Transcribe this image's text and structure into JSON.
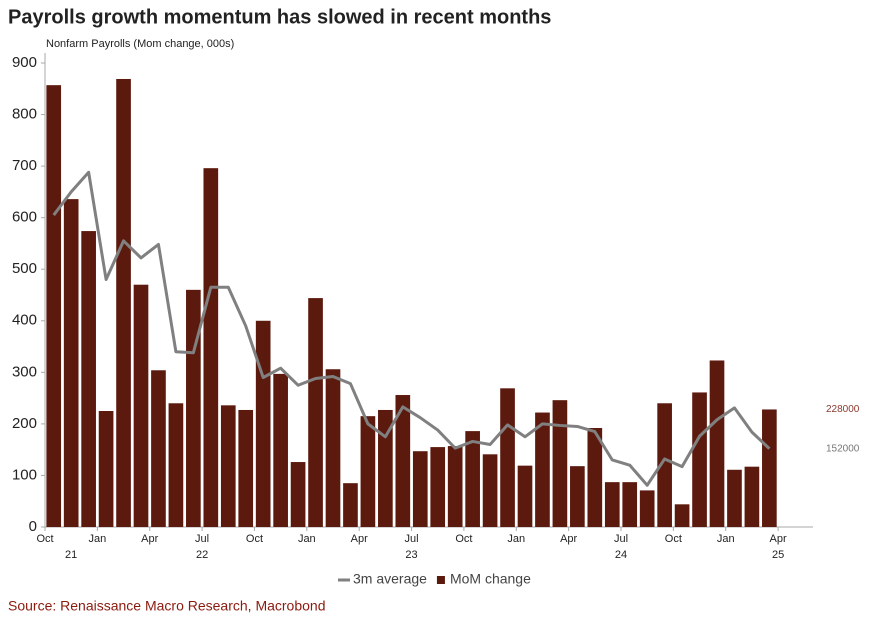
{
  "chart_data": {
    "type": "bar_line",
    "title": "Payrolls growth momentum has slowed in recent months",
    "y_label": "Nonfarm Payrolls (Mom change, 000s)",
    "source": "Source: Renaissance Macro Research, Macrobond",
    "ylim": [
      0,
      900
    ],
    "yticks": [
      0,
      100,
      200,
      300,
      400,
      500,
      600,
      700,
      800,
      900
    ],
    "xlim": [
      0,
      44
    ],
    "xticks": [
      {
        "value": 0,
        "label": "Oct"
      },
      {
        "value": 3,
        "label": "Jan"
      },
      {
        "value": 6,
        "label": "Apr"
      },
      {
        "value": 9,
        "label": "Jul"
      },
      {
        "value": 12,
        "label": "Oct"
      },
      {
        "value": 15,
        "label": "Jan"
      },
      {
        "value": 18,
        "label": "Apr"
      },
      {
        "value": 21,
        "label": "Jul"
      },
      {
        "value": 24,
        "label": "Oct"
      },
      {
        "value": 27,
        "label": "Jan"
      },
      {
        "value": 30,
        "label": "Apr"
      },
      {
        "value": 33,
        "label": "Jul"
      },
      {
        "value": 36,
        "label": "Oct"
      },
      {
        "value": 39,
        "label": "Jan"
      },
      {
        "value": 42,
        "label": "Apr"
      }
    ],
    "year_ticks": [
      {
        "value": 1.5,
        "label": "21"
      },
      {
        "value": 9,
        "label": "22"
      },
      {
        "value": 21,
        "label": "23"
      },
      {
        "value": 33,
        "label": "24"
      },
      {
        "value": 42,
        "label": "25"
      }
    ],
    "grid": false,
    "legend": "bottom",
    "series": [
      {
        "name": "3m average",
        "type": "line",
        "color": "#808080",
        "values": [
          605,
          650,
          688,
          480,
          555,
          522,
          548,
          340,
          338,
          465,
          465,
          390,
          290,
          308,
          275,
          288,
          292,
          278,
          200,
          175,
          233,
          212,
          188,
          153,
          166,
          160,
          198,
          175,
          200,
          197,
          195,
          185,
          130,
          120,
          81,
          132,
          117,
          176,
          208,
          231,
          184,
          152
        ],
        "value_labels": [
          null,
          null,
          null,
          null,
          null,
          null,
          null,
          null,
          null,
          null,
          null,
          null,
          null,
          null,
          null,
          null,
          null,
          null,
          null,
          null,
          null,
          null,
          null,
          null,
          null,
          null,
          null,
          null,
          null,
          null,
          null,
          null,
          null,
          null,
          null,
          null,
          null,
          null,
          null,
          null,
          null,
          "152000"
        ]
      },
      {
        "name": "MoM change",
        "type": "bar",
        "color": "#5c1a0e",
        "values": [
          857,
          636,
          574,
          225,
          869,
          470,
          304,
          240,
          460,
          696,
          236,
          227,
          400,
          297,
          126,
          444,
          306,
          85,
          215,
          227,
          256,
          147,
          155,
          157,
          186,
          141,
          269,
          119,
          222,
          246,
          118,
          192,
          87,
          87,
          71,
          240,
          44,
          261,
          323,
          111,
          117,
          228
        ],
        "value_labels": [
          null,
          null,
          null,
          null,
          null,
          null,
          null,
          null,
          null,
          null,
          null,
          null,
          null,
          null,
          null,
          null,
          null,
          null,
          null,
          null,
          null,
          null,
          null,
          null,
          null,
          null,
          null,
          null,
          null,
          null,
          null,
          null,
          null,
          null,
          null,
          null,
          null,
          null,
          null,
          null,
          null,
          "228000"
        ]
      }
    ]
  }
}
